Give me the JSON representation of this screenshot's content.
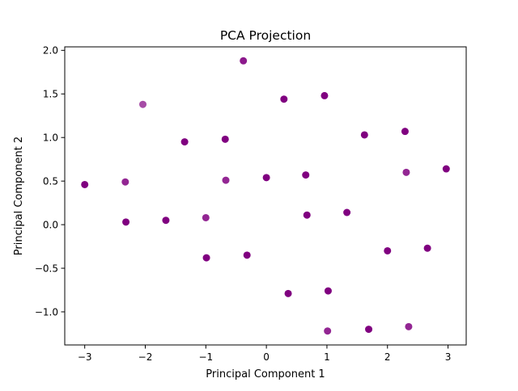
{
  "chart_data": {
    "type": "scatter",
    "title": "PCA Projection",
    "xlabel": "Principal Component 1",
    "ylabel": "Principal Component 2",
    "xlim": [
      -3.33,
      3.3
    ],
    "ylim": [
      -1.38,
      2.04
    ],
    "xticks": [
      -3,
      -2,
      -1,
      0,
      1,
      2,
      3
    ],
    "xtick_labels": [
      "−3",
      "−2",
      "−1",
      "0",
      "1",
      "2",
      "3"
    ],
    "yticks": [
      -1.0,
      -0.5,
      0.0,
      0.5,
      1.0,
      1.5,
      2.0
    ],
    "ytick_labels": [
      "−1.0",
      "−0.5",
      "0.0",
      "0.5",
      "1.0",
      "1.5",
      "2.0"
    ],
    "grid": false,
    "marker_color": "#800080",
    "series": [
      {
        "points": [
          {
            "x": -0.38,
            "y": 1.88,
            "alpha": 0.9
          },
          {
            "x": -2.04,
            "y": 1.38,
            "alpha": 0.7
          },
          {
            "x": 0.29,
            "y": 1.44,
            "alpha": 1.0
          },
          {
            "x": 0.96,
            "y": 1.48,
            "alpha": 1.0
          },
          {
            "x": -1.35,
            "y": 0.95,
            "alpha": 1.0
          },
          {
            "x": -0.68,
            "y": 0.98,
            "alpha": 1.0
          },
          {
            "x": 1.62,
            "y": 1.03,
            "alpha": 1.0
          },
          {
            "x": 2.29,
            "y": 1.07,
            "alpha": 1.0
          },
          {
            "x": -3.0,
            "y": 0.46,
            "alpha": 1.0
          },
          {
            "x": -2.33,
            "y": 0.49,
            "alpha": 0.85
          },
          {
            "x": -0.67,
            "y": 0.51,
            "alpha": 0.85
          },
          {
            "x": 0.0,
            "y": 0.54,
            "alpha": 1.0
          },
          {
            "x": 0.65,
            "y": 0.57,
            "alpha": 1.0
          },
          {
            "x": 2.31,
            "y": 0.6,
            "alpha": 0.85
          },
          {
            "x": 2.97,
            "y": 0.64,
            "alpha": 1.0
          },
          {
            "x": -2.32,
            "y": 0.03,
            "alpha": 1.0
          },
          {
            "x": -1.66,
            "y": 0.05,
            "alpha": 1.0
          },
          {
            "x": -1.0,
            "y": 0.08,
            "alpha": 0.85
          },
          {
            "x": 0.67,
            "y": 0.11,
            "alpha": 1.0
          },
          {
            "x": 1.33,
            "y": 0.14,
            "alpha": 1.0
          },
          {
            "x": -0.99,
            "y": -0.38,
            "alpha": 1.0
          },
          {
            "x": -0.32,
            "y": -0.35,
            "alpha": 1.0
          },
          {
            "x": 2.0,
            "y": -0.3,
            "alpha": 1.0
          },
          {
            "x": 2.66,
            "y": -0.27,
            "alpha": 1.0
          },
          {
            "x": 0.36,
            "y": -0.79,
            "alpha": 1.0
          },
          {
            "x": 1.02,
            "y": -0.76,
            "alpha": 1.0
          },
          {
            "x": 1.01,
            "y": -1.22,
            "alpha": 0.85
          },
          {
            "x": 1.69,
            "y": -1.2,
            "alpha": 1.0
          },
          {
            "x": 2.35,
            "y": -1.17,
            "alpha": 0.85
          }
        ]
      }
    ]
  }
}
